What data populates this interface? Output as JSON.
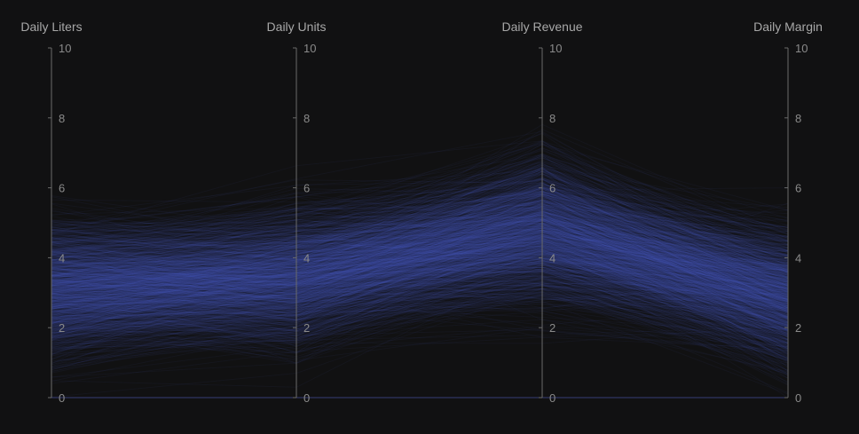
{
  "chart_data": {
    "type": "parallel-coordinates",
    "axes": [
      "Daily Liters",
      "Daily Units",
      "Daily Revenue",
      "Daily Margin"
    ],
    "range": [
      0,
      10
    ],
    "ticks": [
      "0",
      "2",
      "4",
      "6",
      "8",
      "10"
    ],
    "series_color": "#5a63c8",
    "background": "#111112",
    "distribution": {
      "Daily Liters": {
        "center": 3.1,
        "spread": 1.2
      },
      "Daily Units": {
        "center": 3.5,
        "spread": 1.25
      },
      "Daily Revenue": {
        "center": 4.8,
        "spread": 1.3
      },
      "Daily Margin": {
        "center": 2.9,
        "spread": 1.25
      }
    },
    "grid": false,
    "legend": "none"
  }
}
